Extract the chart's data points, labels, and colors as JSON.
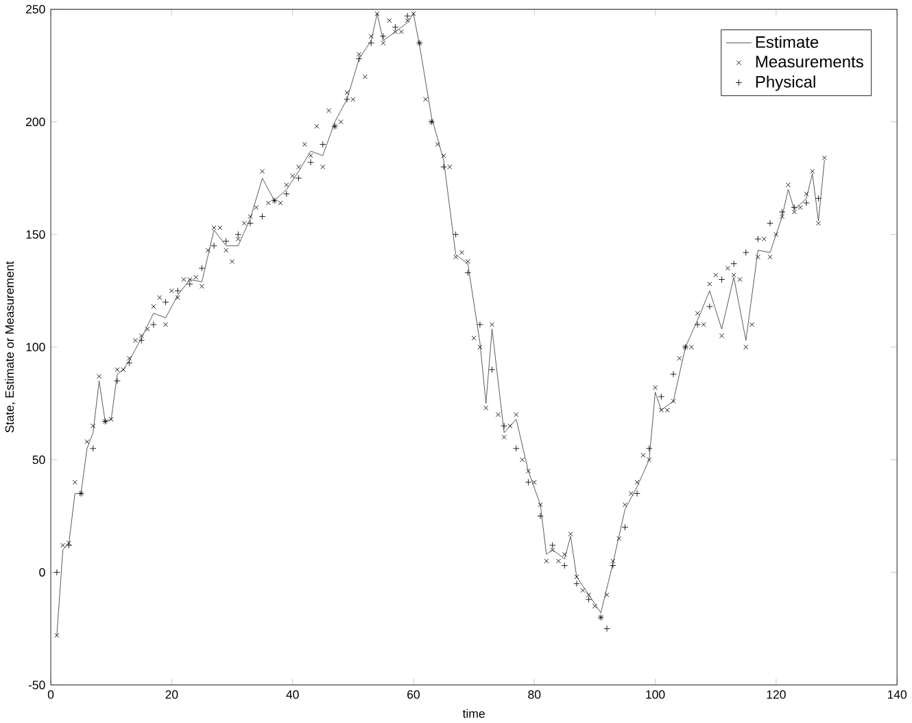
{
  "chart_data": {
    "type": "line",
    "xlabel": "time",
    "ylabel": "State, Estimate or Measurement",
    "xlim": [
      0,
      140
    ],
    "xticks": [
      0,
      20,
      40,
      60,
      80,
      100,
      120,
      140
    ],
    "ylim": [
      -50,
      250
    ],
    "yticks": [
      -50,
      0,
      50,
      100,
      150,
      200,
      250
    ],
    "grid": false,
    "legend": "top right",
    "series": [
      {
        "name": "Estimate",
        "type": "line",
        "marker": "none",
        "line_style": "solid",
        "color": "#404040",
        "x": [
          1,
          2,
          3,
          4,
          5,
          6,
          7,
          8,
          9,
          10,
          11,
          12,
          13,
          15,
          17,
          19,
          21,
          23,
          25,
          27,
          29,
          31,
          33,
          35,
          37,
          39,
          41,
          43,
          45,
          47,
          49,
          51,
          53,
          54,
          55,
          57,
          59,
          60,
          61,
          63,
          65,
          67,
          69,
          71,
          72,
          73,
          75,
          77,
          79,
          81,
          82,
          83,
          85,
          86,
          87,
          89,
          91,
          93,
          95,
          97,
          99,
          100,
          101,
          103,
          105,
          107,
          109,
          111,
          113,
          115,
          117,
          119,
          121,
          122,
          123,
          125,
          126,
          127,
          128
        ],
        "values": [
          -28,
          10,
          13,
          35,
          35,
          55,
          62,
          85,
          67,
          68,
          88,
          90,
          94,
          104,
          115,
          113,
          123,
          130,
          129,
          152,
          145,
          145,
          157,
          175,
          165,
          170,
          178,
          187,
          185,
          200,
          210,
          228,
          236,
          248,
          236,
          240,
          244,
          248,
          234,
          202,
          183,
          141,
          137,
          102,
          75,
          108,
          62,
          68,
          45,
          30,
          8,
          10,
          6,
          16,
          -2,
          -10,
          -18,
          4,
          28,
          38,
          50,
          80,
          72,
          76,
          100,
          112,
          125,
          108,
          131,
          103,
          143,
          142,
          158,
          170,
          161,
          166,
          177,
          156,
          183
        ]
      },
      {
        "name": "Measurements",
        "type": "scatter",
        "marker": "cross",
        "color": "#000000",
        "x": [
          1,
          2,
          3,
          4,
          5,
          6,
          7,
          8,
          9,
          10,
          11,
          12,
          13,
          14,
          15,
          16,
          17,
          18,
          19,
          20,
          21,
          22,
          23,
          24,
          25,
          26,
          27,
          28,
          29,
          30,
          31,
          32,
          33,
          34,
          35,
          36,
          37,
          38,
          39,
          40,
          41,
          42,
          43,
          44,
          45,
          46,
          47,
          48,
          49,
          50,
          51,
          52,
          53,
          54,
          55,
          56,
          57,
          58,
          59,
          60,
          61,
          62,
          63,
          64,
          65,
          66,
          67,
          68,
          69,
          70,
          71,
          72,
          73,
          74,
          75,
          76,
          77,
          78,
          79,
          80,
          81,
          82,
          83,
          84,
          85,
          86,
          87,
          88,
          89,
          90,
          91,
          92,
          93,
          94,
          95,
          96,
          97,
          98,
          99,
          100,
          101,
          102,
          103,
          104,
          105,
          106,
          107,
          108,
          109,
          110,
          111,
          112,
          113,
          114,
          115,
          116,
          117,
          118,
          119,
          120,
          121,
          122,
          123,
          124,
          125,
          126,
          127,
          128
        ],
        "values": [
          -28,
          12,
          13,
          40,
          35,
          58,
          65,
          87,
          67,
          68,
          90,
          90,
          95,
          103,
          105,
          108,
          118,
          122,
          110,
          125,
          122,
          130,
          130,
          131,
          127,
          143,
          153,
          153,
          143,
          138,
          148,
          155,
          158,
          162,
          178,
          164,
          165,
          164,
          172,
          176,
          180,
          190,
          185,
          198,
          180,
          205,
          198,
          200,
          213,
          210,
          230,
          220,
          238,
          248,
          235,
          245,
          240,
          240,
          245,
          248,
          235,
          210,
          200,
          190,
          185,
          180,
          140,
          142,
          138,
          104,
          100,
          73,
          110,
          70,
          60,
          65,
          70,
          50,
          45,
          40,
          30,
          5,
          10,
          5,
          8,
          17,
          -2,
          -8,
          -10,
          -15,
          -20,
          -10,
          5,
          15,
          30,
          35,
          40,
          52,
          50,
          82,
          72,
          72,
          76,
          95,
          100,
          100,
          115,
          110,
          128,
          132,
          105,
          135,
          132,
          130,
          100,
          110,
          140,
          148,
          140,
          150,
          158,
          172,
          160,
          162,
          168,
          178,
          155,
          184
        ]
      },
      {
        "name": "Physical",
        "type": "scatter",
        "marker": "plus",
        "color": "#000000",
        "x": [
          1,
          3,
          5,
          7,
          9,
          11,
          13,
          15,
          17,
          19,
          21,
          23,
          25,
          27,
          29,
          31,
          33,
          35,
          37,
          39,
          41,
          43,
          45,
          47,
          49,
          51,
          53,
          55,
          57,
          59,
          61,
          63,
          65,
          67,
          69,
          71,
          73,
          75,
          77,
          79,
          81,
          83,
          85,
          87,
          89,
          91,
          92,
          93,
          95,
          97,
          99,
          101,
          103,
          105,
          107,
          109,
          111,
          113,
          115,
          117,
          119,
          121,
          123,
          125,
          127
        ],
        "values": [
          0,
          12,
          35,
          55,
          67,
          85,
          93,
          103,
          110,
          120,
          125,
          128,
          135,
          145,
          147,
          150,
          155,
          158,
          165,
          168,
          175,
          182,
          190,
          198,
          210,
          228,
          235,
          238,
          242,
          247,
          235,
          200,
          180,
          150,
          133,
          110,
          90,
          65,
          55,
          40,
          25,
          12,
          3,
          -5,
          -12,
          -20,
          -25,
          3,
          20,
          35,
          55,
          78,
          88,
          100,
          110,
          118,
          130,
          137,
          142,
          148,
          155,
          160,
          162,
          164,
          166
        ]
      }
    ]
  }
}
